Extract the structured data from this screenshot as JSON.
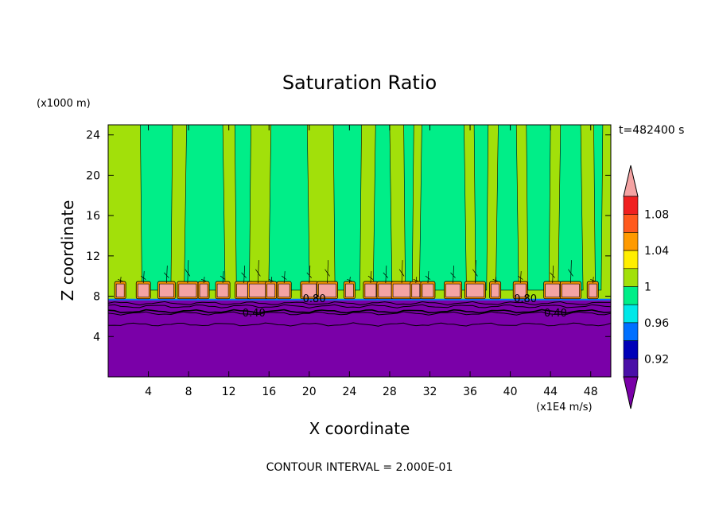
{
  "chart_data": {
    "type": "contour",
    "title": "Saturation Ratio",
    "xlabel": "X coordinate",
    "ylabel": "Z coordinate",
    "x_unit": "(x1E4 m/s)",
    "y_unit": "(x1000 m)",
    "time_label": "t=482400 s",
    "footer": "CONTOUR INTERVAL = 2.000E-01",
    "xlim": [
      0,
      50
    ],
    "ylim": [
      0,
      25
    ],
    "x_ticks": [
      "4",
      "8",
      "12",
      "16",
      "20",
      "24",
      "28",
      "32",
      "36",
      "40",
      "44",
      "48"
    ],
    "y_ticks": [
      "4",
      "8",
      "12",
      "16",
      "20",
      "24"
    ],
    "contour_labels": [
      {
        "text": "0.40",
        "x": 14.5,
        "z": 6.4
      },
      {
        "text": "0.80",
        "x": 20.5,
        "z": 7.8
      },
      {
        "text": "0.80",
        "x": 41.5,
        "z": 7.8
      },
      {
        "text": "0.40",
        "x": 44.5,
        "z": 6.4
      }
    ],
    "supersat_cells_x": [
      1.2,
      3.5,
      5.8,
      7.9,
      9.5,
      11.4,
      13.5,
      14.9,
      16.2,
      17.5,
      20.0,
      21.8,
      24.0,
      26.1,
      27.6,
      29.2,
      30.6,
      31.8,
      34.3,
      36.5,
      38.5,
      41.0,
      44.2,
      46.0,
      48.2
    ],
    "dry_bands_x": [
      [
        3.2,
        6.4
      ],
      [
        7.8,
        11.4
      ],
      [
        12.6,
        14.2
      ],
      [
        16.2,
        19.8
      ],
      [
        22.4,
        25.2
      ],
      [
        26.6,
        28.0
      ],
      [
        29.4,
        30.4
      ],
      [
        31.2,
        35.4
      ],
      [
        36.4,
        37.8
      ],
      [
        38.8,
        40.6
      ],
      [
        41.6,
        44.0
      ],
      [
        45.0,
        47.0
      ],
      [
        48.3,
        49.2
      ]
    ],
    "colorbar": {
      "levels": [
        "0.92",
        "0.96",
        "1",
        "1.04",
        "1.08"
      ],
      "colors": {
        "over": "#f4a3a3",
        "1.10": "#f02020",
        "1.08": "#ff5a1e",
        "1.06": "#ff9a00",
        "1.04": "#ffee00",
        "1.02": "#a2e00a",
        "1.00": "#00ee88",
        "0.98": "#00e8e8",
        "0.96": "#0070ff",
        "0.94": "#0000b8",
        "0.92": "#4a10a8",
        "under": "#7a00a8"
      }
    }
  }
}
